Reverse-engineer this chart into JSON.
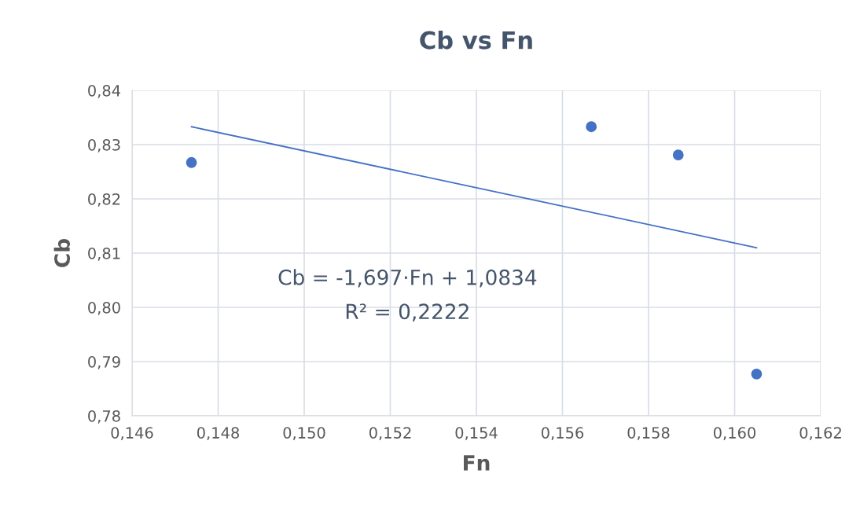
{
  "chart_data": {
    "type": "scatter",
    "title": "Cb vs Fn",
    "xlabel": "Fn",
    "ylabel": "Cb",
    "series": [
      {
        "color": "#4472c4",
        "x": [
          0.14738,
          0.15667,
          0.15869,
          0.16051
        ],
        "values": [
          0.8267,
          0.8333,
          0.8281,
          0.7877
        ],
        "marker": "circle"
      },
      {
        "type": "line",
        "color": "#4472c4",
        "x": [
          0.14738,
          0.16051
        ],
        "values": [
          0.8333,
          0.811
        ],
        "marker": "none",
        "line_style": "solid"
      }
    ],
    "annotations": [
      "Cb = -1,697·Fn + 1,0834",
      "R² = 0,2222"
    ],
    "xlim": [
      0.146,
      0.162
    ],
    "xticks": [
      {
        "value": 0.146,
        "label": "0,146"
      },
      {
        "value": 0.148,
        "label": "0,148"
      },
      {
        "value": 0.15,
        "label": "0,150"
      },
      {
        "value": 0.152,
        "label": "0,152"
      },
      {
        "value": 0.154,
        "label": "0,154"
      },
      {
        "value": 0.156,
        "label": "0,156"
      },
      {
        "value": 0.158,
        "label": "0,158"
      },
      {
        "value": 0.16,
        "label": "0,160"
      },
      {
        "value": 0.162,
        "label": "0,162"
      }
    ],
    "ylim": [
      0.78,
      0.84
    ],
    "yticks": [
      {
        "value": 0.78,
        "label": "0,78"
      },
      {
        "value": 0.79,
        "label": "0,79"
      },
      {
        "value": 0.8,
        "label": "0,80"
      },
      {
        "value": 0.81,
        "label": "0,81"
      },
      {
        "value": 0.82,
        "label": "0,82"
      },
      {
        "value": 0.83,
        "label": "0,83"
      },
      {
        "value": 0.84,
        "label": "0,84"
      }
    ],
    "grid": true,
    "legend": false
  }
}
